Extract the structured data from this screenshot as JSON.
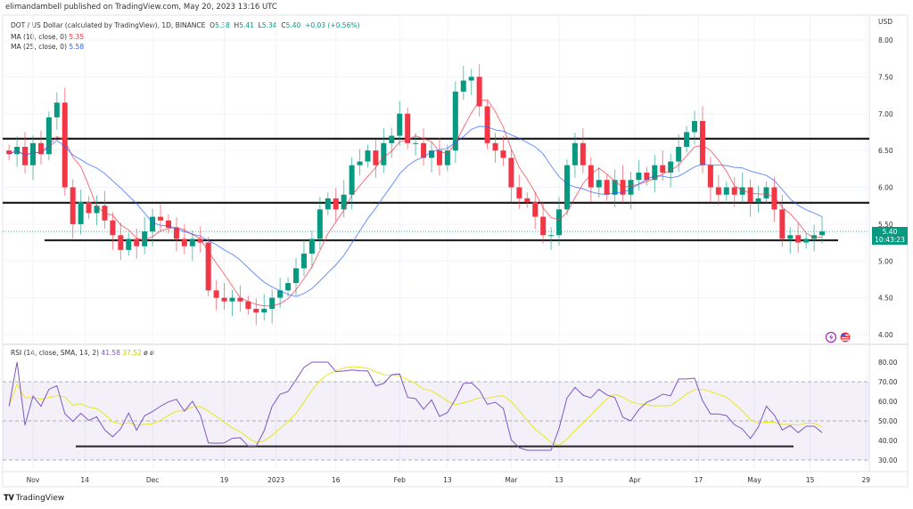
{
  "header": {
    "publisher": "elimandambell published on TradingView.com, May 20, 2023 13:16 UTC",
    "symbol": "DOT / US Dollar (calculated by TradingView), 1D, BINANCE",
    "o_label": "O",
    "o": "5.38",
    "h_label": "H",
    "h": "5.41",
    "l_label": "L",
    "l": "5.34",
    "c_label": "C",
    "c": "5.40",
    "change": "+0.03 (+0.56%)",
    "ma10_label": "MA (10, close, 0)",
    "ma10_value": "5.35",
    "ma25_label": "MA (25, close, 0)",
    "ma25_value": "5.58",
    "rsi_label": "RSI (14, close, SMA, 14, 2)",
    "rsi_value": "41.58",
    "rsi_ma_value": "37.52",
    "rsi_extra1": "ø",
    "rsi_extra2": "ø"
  },
  "price_tag": {
    "price": "5.40",
    "countdown": "10:43:23"
  },
  "currency": "USD",
  "footer": {
    "logo": "TradingView"
  },
  "icons": [
    "lightning-icon",
    "us-flag-icon"
  ],
  "colors": {
    "up": "#089981",
    "down": "#f23645",
    "ma10": "#f23645",
    "ma25": "#2962ff",
    "rsi": "#7e57c2",
    "rsi_ma": "#e8e81e",
    "lines": "#222222"
  },
  "chart_data": {
    "type": "candlestick",
    "title": "DOT / US Dollar (calculated by TradingView), 1D, BINANCE",
    "x_ticks": [
      "Nov",
      "14",
      "Dec",
      "19",
      "2023",
      "16",
      "Feb",
      "13",
      "Mar",
      "13",
      "Apr",
      "17",
      "May",
      "15",
      "29"
    ],
    "x_tick_days": [
      0,
      13,
      30,
      48,
      61,
      76,
      92,
      104,
      120,
      132,
      151,
      167,
      181,
      195,
      209
    ],
    "y_ticks": [
      "8.00",
      "7.50",
      "7.00",
      "6.50",
      "6.00",
      "5.50",
      "5.00",
      "4.50",
      "4.00"
    ],
    "ylim": [
      4.0,
      8.0
    ],
    "sample_days_from_nov1_step2_start": -6,
    "closes": [
      6.45,
      6.55,
      6.3,
      6.6,
      6.45,
      6.95,
      7.15,
      6.0,
      5.5,
      5.8,
      5.65,
      5.75,
      5.55,
      5.35,
      5.15,
      5.3,
      5.2,
      5.4,
      5.6,
      5.55,
      5.45,
      5.3,
      5.2,
      5.3,
      5.25,
      4.6,
      4.5,
      4.45,
      4.5,
      4.45,
      4.35,
      4.3,
      4.35,
      4.5,
      4.6,
      4.7,
      4.9,
      5.1,
      5.3,
      5.7,
      5.85,
      5.7,
      5.9,
      6.3,
      6.35,
      6.5,
      6.3,
      6.6,
      6.7,
      7.0,
      6.6,
      6.6,
      6.4,
      6.5,
      6.3,
      6.5,
      7.3,
      7.45,
      7.5,
      7.1,
      6.6,
      6.5,
      6.4,
      6.0,
      5.85,
      5.8,
      5.6,
      5.35,
      5.35,
      5.7,
      6.3,
      6.6,
      6.3,
      6.0,
      6.1,
      5.9,
      6.1,
      5.9,
      6.1,
      6.2,
      6.1,
      6.3,
      6.2,
      6.35,
      6.55,
      6.75,
      6.9,
      6.3,
      6.0,
      5.9,
      6.0,
      5.9,
      6.0,
      5.8,
      5.85,
      6.0,
      5.7,
      5.3,
      5.35,
      5.25,
      5.3,
      5.35,
      5.4
    ],
    "horizontal_levels": [
      6.66,
      5.79,
      5.28
    ],
    "rsi": {
      "y_ticks": [
        "80.00",
        "70.00",
        "60.00",
        "50.00",
        "40.00",
        "30.00"
      ],
      "ylim": [
        25,
        85
      ],
      "band": [
        30,
        70
      ],
      "horizontal_level": 37
    }
  }
}
